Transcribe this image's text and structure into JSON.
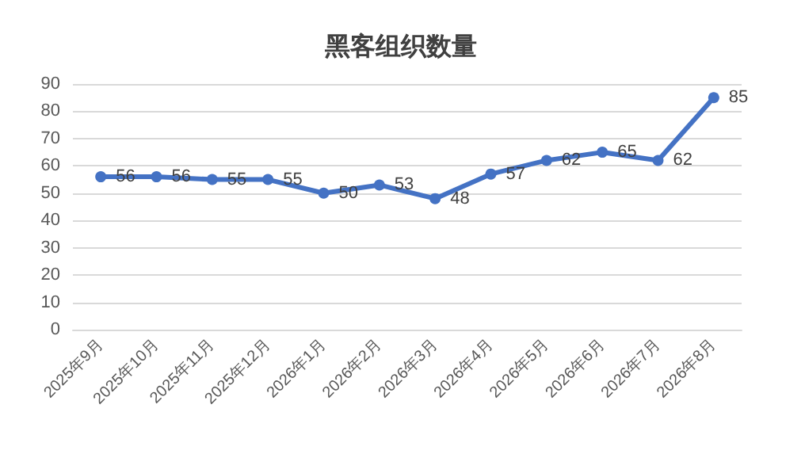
{
  "chart_data": {
    "type": "line",
    "title": "黑客组织数量",
    "categories": [
      "2025年9月",
      "2025年10月",
      "2025年11月",
      "2025年12月",
      "2026年1月",
      "2026年2月",
      "2026年3月",
      "2026年4月",
      "2026年5月",
      "2026年6月",
      "2026年7月",
      "2026年8月"
    ],
    "series": [
      {
        "color": "#4472c4",
        "values": [
          56,
          56,
          55,
          55,
          50,
          53,
          48,
          57,
          62,
          65,
          62,
          85
        ]
      }
    ],
    "ylim": [
      0,
      90
    ],
    "yticks": [
      0,
      10,
      20,
      30,
      40,
      50,
      60,
      70,
      80,
      90
    ],
    "grid": "y",
    "marker": "circle",
    "line_style": "solid",
    "data_labels": true
  }
}
